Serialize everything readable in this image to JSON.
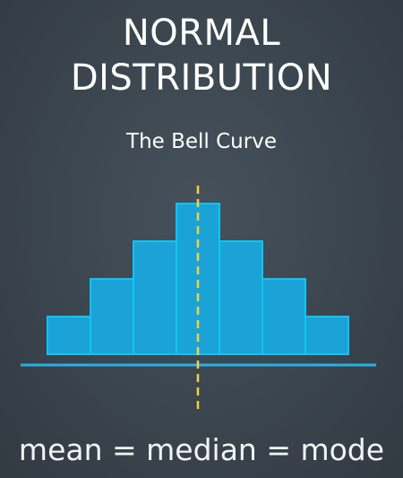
{
  "heading": {
    "title_line1": "NORMAL",
    "title_line2": "DISTRIBUTION",
    "subtitle": "The Bell Curve"
  },
  "footer": {
    "text": "mean = median = mode"
  },
  "colors": {
    "background": "#3b454e",
    "bar_fill": "#1ba3d8",
    "bar_stroke": "#10c4f6",
    "baseline": "#21b3e8",
    "mean_line": "#f5d23a",
    "text": "#ffffff"
  },
  "chart_data": {
    "type": "bar",
    "title": "",
    "xlabel": "",
    "ylabel": "",
    "categories": [
      "",
      "",
      "",
      "",
      "",
      "",
      ""
    ],
    "values": [
      1,
      2,
      3,
      4,
      3,
      2,
      1
    ],
    "ylim": [
      0,
      4
    ],
    "grid": false,
    "annotations": [
      {
        "type": "vertical-dashed-line",
        "at_category_index": 3
      }
    ]
  }
}
